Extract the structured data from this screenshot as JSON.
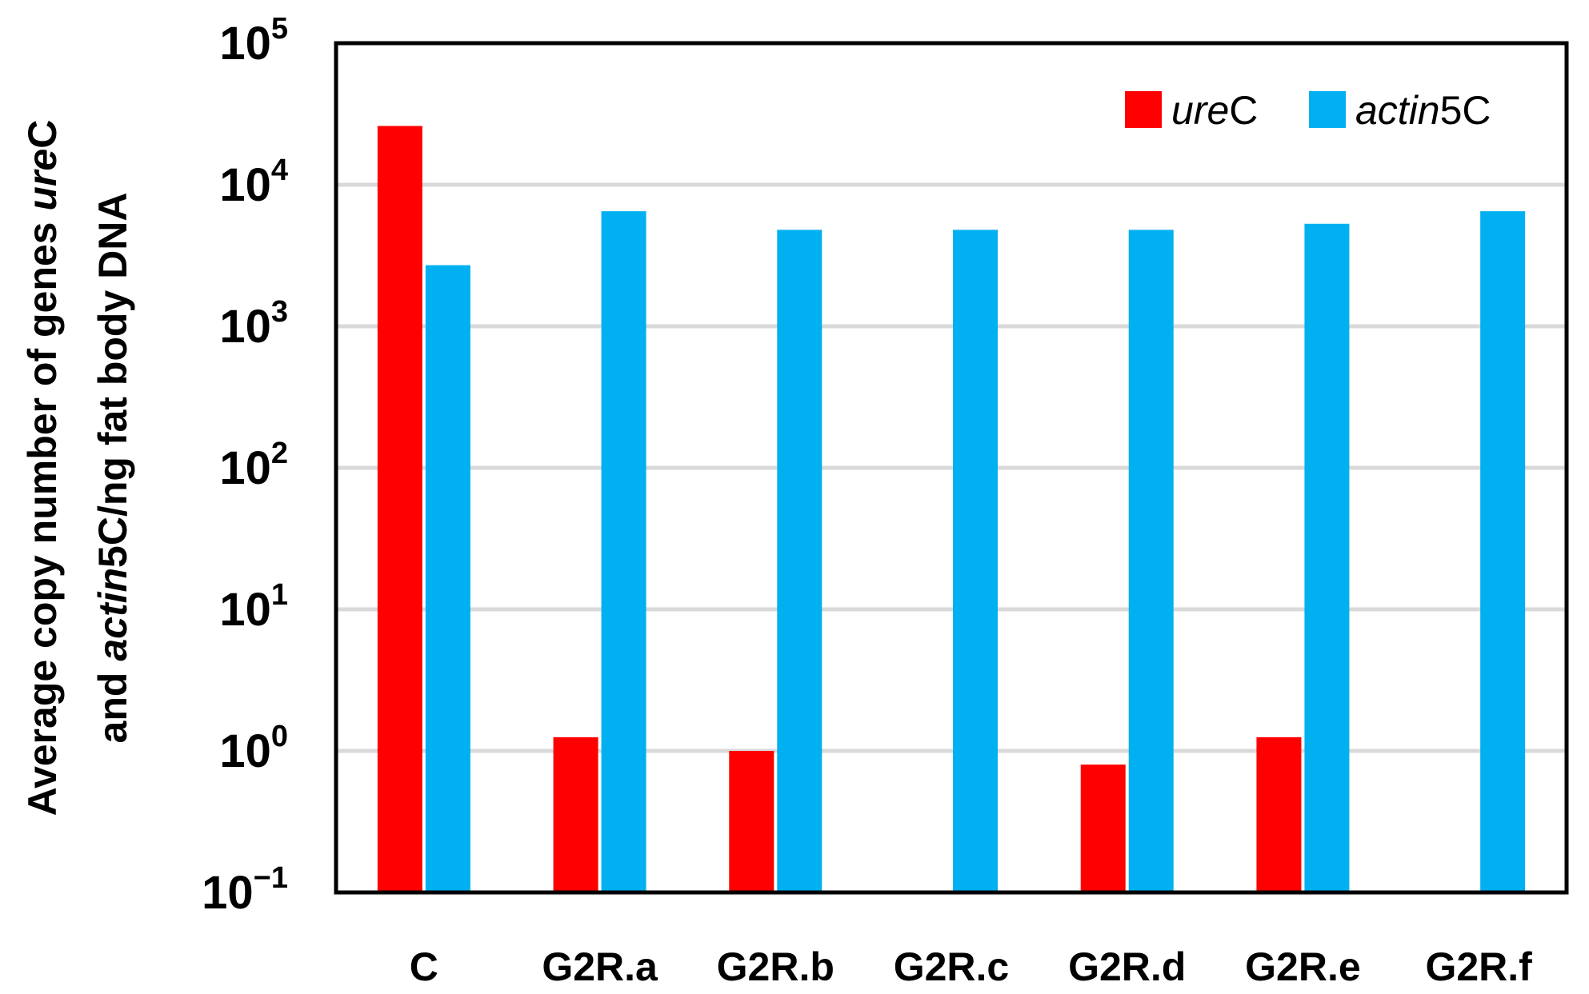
{
  "chart_data": {
    "type": "bar",
    "y_scale": "log",
    "ylim": [
      0.1,
      100000
    ],
    "grid": true,
    "legend_position": "top-right",
    "ylabel": "Average copy number of genes ureC and actin5C/ng fat body DNA",
    "ylabel_lines": [
      [
        {
          "text": "Average copy number of genes ",
          "italic": false
        },
        {
          "text": "ure",
          "italic": true
        },
        {
          "text": "C",
          "italic": false
        }
      ],
      [
        {
          "text": "and ",
          "italic": false
        },
        {
          "text": "actin",
          "italic": true
        },
        {
          "text": "5C/ng fat body DNA",
          "italic": false
        }
      ]
    ],
    "y_ticks": [
      {
        "value": 0.1,
        "base": "10",
        "exp": "−1"
      },
      {
        "value": 1,
        "base": "10",
        "exp": "0"
      },
      {
        "value": 10,
        "base": "10",
        "exp": "1"
      },
      {
        "value": 100,
        "base": "10",
        "exp": "2"
      },
      {
        "value": 1000,
        "base": "10",
        "exp": "3"
      },
      {
        "value": 10000,
        "base": "10",
        "exp": "4"
      },
      {
        "value": 100000,
        "base": "10",
        "exp": "5"
      }
    ],
    "categories": [
      "C",
      "G2R.a",
      "G2R.b",
      "G2R.c",
      "G2R.d",
      "G2R.e",
      "G2R.f"
    ],
    "series": [
      {
        "name": "ureC",
        "legend_parts": [
          {
            "text": "ure",
            "italic": true
          },
          {
            "text": "C",
            "italic": false
          }
        ],
        "color": "#ff0000",
        "values": [
          26000,
          1.25,
          1.0,
          null,
          0.8,
          1.25,
          null
        ]
      },
      {
        "name": "actin5C",
        "legend_parts": [
          {
            "text": "actin",
            "italic": true
          },
          {
            "text": "5C",
            "italic": false
          }
        ],
        "color": "#00b0f0",
        "values": [
          2700,
          6500,
          4800,
          4800,
          4800,
          5300,
          6500
        ]
      }
    ]
  }
}
